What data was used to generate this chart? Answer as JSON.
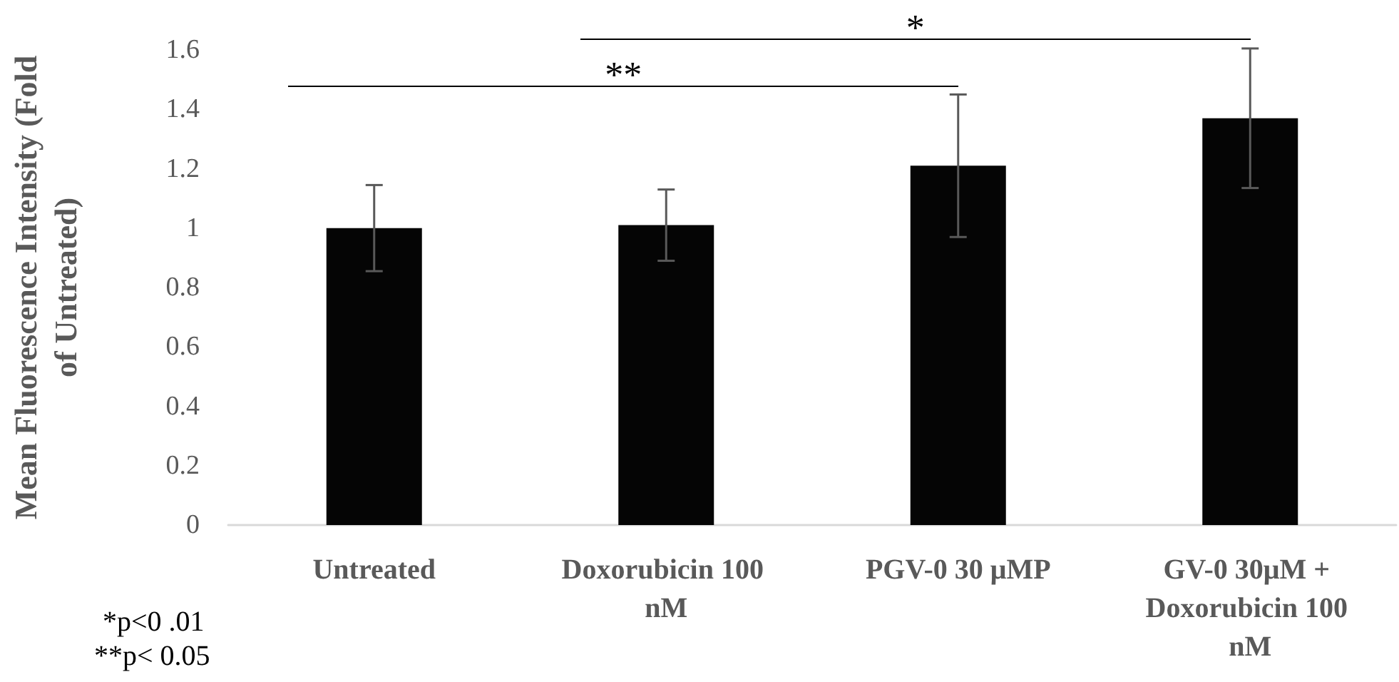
{
  "chart_data": {
    "type": "bar",
    "ylabel": "Mean Fluorescence Intensity (Fold of Untreated)",
    "categories": [
      "Untreated",
      "Doxorubicin 100 nM",
      "PGV-0 30 μMP",
      "GV-0 30μM + Doxorubicin 100 nM"
    ],
    "values": [
      1.0,
      1.01,
      1.21,
      1.37
    ],
    "errors": [
      0.145,
      0.12,
      0.24,
      0.235
    ],
    "color": "#050505",
    "ylim": [
      0,
      1.6
    ],
    "yticks": [
      0,
      0.2,
      0.4,
      0.6,
      0.8,
      1,
      1.2,
      1.4,
      1.6
    ],
    "grid": false,
    "annotations": [
      "**",
      "*",
      "*p<0 .01",
      "**p< 0.05"
    ]
  }
}
